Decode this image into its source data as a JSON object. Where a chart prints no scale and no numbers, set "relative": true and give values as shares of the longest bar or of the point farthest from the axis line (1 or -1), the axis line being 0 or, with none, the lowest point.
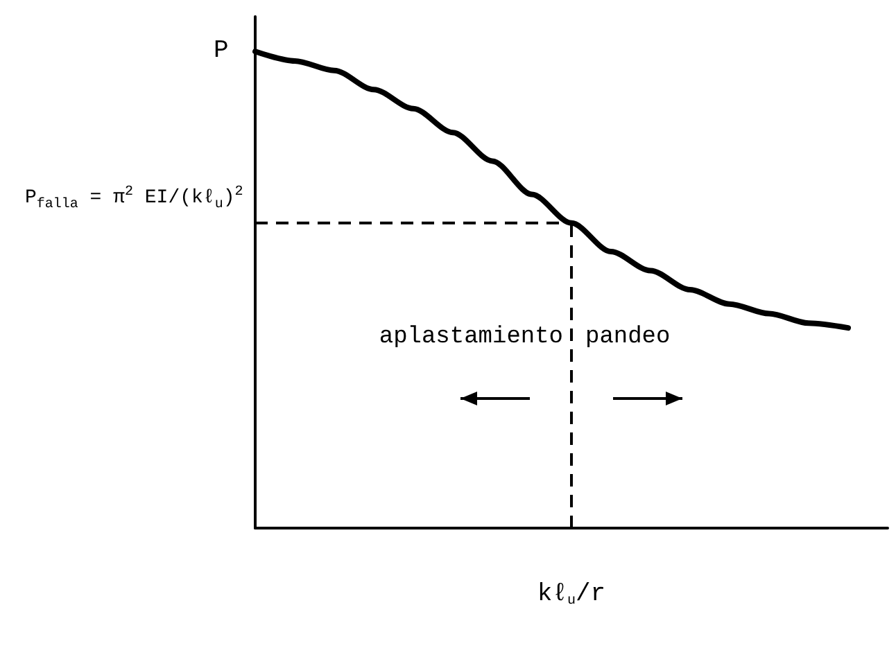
{
  "chart_data": {
    "type": "line",
    "relative": true,
    "ylabel": "P",
    "xlabel": "kℓ$_{u}$/r",
    "categories": [
      null,
      null,
      null,
      null,
      null,
      null,
      null,
      null,
      null,
      null,
      null,
      null,
      null,
      null,
      null,
      null,
      null
    ],
    "series": [
      {
        "color": "#000000",
        "values": [
          1.0,
          0.98,
          0.96,
          0.92,
          0.88,
          0.83,
          0.77,
          0.7,
          0.64,
          0.58,
          0.54,
          0.5,
          0.47,
          0.45,
          0.43,
          0.42,
          null
        ]
      }
    ],
    "ref_lines": [
      {
        "axis": "y",
        "value": 0.64,
        "label": "P$_{falla}$ = π$^{2}$ EI/(kℓ$_{u}$)$^{2}$",
        "line_style": "dashed",
        "color": "#000000"
      }
    ],
    "annotations": [
      "aplastamiento",
      "pandeo"
    ],
    "grid": false,
    "marker": "none",
    "line_style": "solid"
  }
}
